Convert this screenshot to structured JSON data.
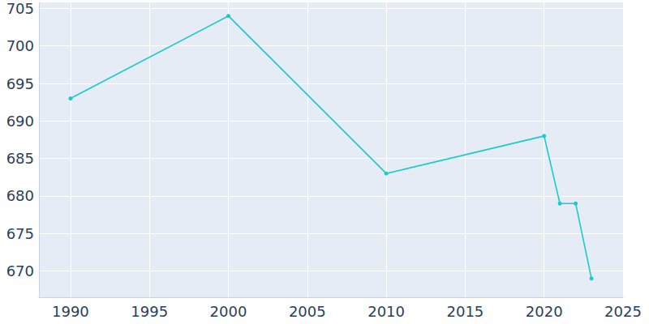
{
  "chart_data": {
    "type": "line",
    "x": [
      1990,
      2000,
      2010,
      2020,
      2021,
      2022,
      2023
    ],
    "values": [
      693,
      704,
      683,
      688,
      679,
      679,
      669
    ],
    "color": "#17cbcb",
    "marker": "circle",
    "xlim": [
      1988,
      2025
    ],
    "xticks": [
      1990,
      1995,
      2000,
      2005,
      2010,
      2015,
      2020,
      2025
    ],
    "ylim": [
      666.5,
      705.8
    ],
    "yticks": [
      670,
      675,
      680,
      685,
      690,
      695,
      700,
      705
    ],
    "grid": true
  }
}
